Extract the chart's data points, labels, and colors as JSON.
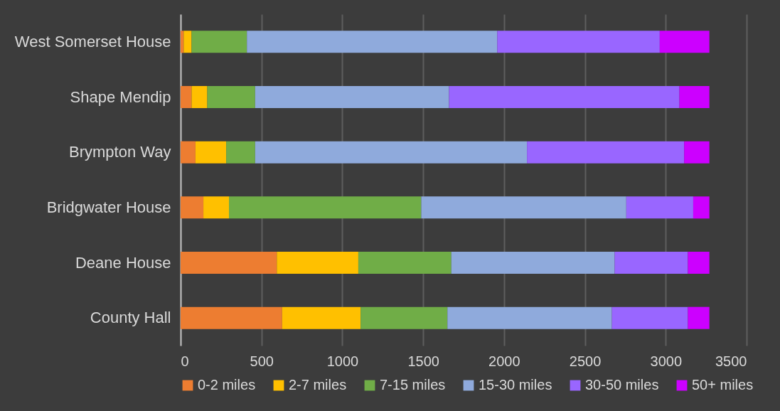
{
  "chart_data": {
    "type": "bar",
    "orientation": "horizontal",
    "stacked": true,
    "categories": [
      "West Somerset House",
      "Shape Mendip",
      "Brympton Way",
      "Bridgwater House",
      "Deane House",
      "County Hall"
    ],
    "series": [
      {
        "name": "0-2 miles",
        "color": "#ed7d31",
        "values": [
          19,
          68,
          92,
          141,
          595,
          628
        ]
      },
      {
        "name": "2-7 miles",
        "color": "#ffc000",
        "values": [
          49,
          97,
          190,
          158,
          504,
          485
        ]
      },
      {
        "name": "7-15 miles",
        "color": "#70ad47",
        "values": [
          342,
          296,
          179,
          1189,
          575,
          537
        ]
      },
      {
        "name": "15-30 miles",
        "color": "#8faadc",
        "values": [
          1548,
          1199,
          1681,
          1268,
          1010,
          1017
        ]
      },
      {
        "name": "30-50 miles",
        "color": "#9966ff",
        "values": [
          1005,
          1425,
          972,
          414,
          453,
          470
        ]
      },
      {
        "name": "50+ miles",
        "color": "#cc00ff",
        "values": [
          307,
          185,
          156,
          100,
          133,
          133
        ]
      }
    ],
    "xlim": [
      0,
      3500
    ],
    "xticks": [
      0,
      500,
      1000,
      1500,
      2000,
      2500,
      3000,
      3500
    ],
    "grid": "x",
    "legend": "bottom"
  }
}
